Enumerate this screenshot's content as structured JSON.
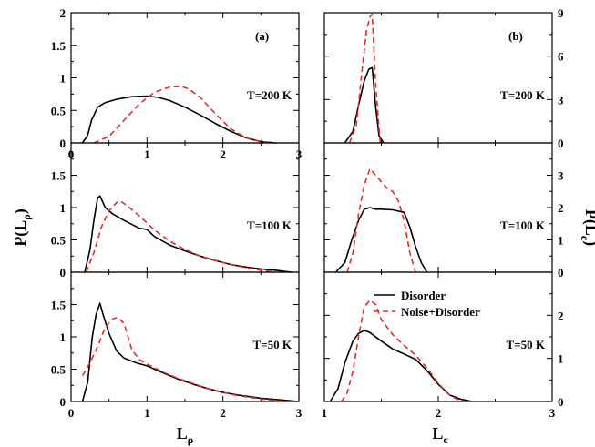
{
  "legend": [
    {
      "label": "Disorder",
      "color": "#000000",
      "dash": "solid"
    },
    {
      "label": "Noise+Disorder",
      "color": "#e8282b",
      "dash": "dashed"
    }
  ],
  "chart_data": [
    {
      "type": "line",
      "panel_tag": "(a)",
      "temp_label": "T=200 K",
      "xlabel": "L",
      "xlabel_sub": "ρ",
      "ylabel": "P(L",
      "ylabel_sub": "ρ",
      "ylabel_close": ")",
      "xlim": [
        0,
        3
      ],
      "ylim": [
        0,
        2
      ],
      "xticks": [
        "0",
        "1",
        "2",
        "3"
      ],
      "yticks": [
        "0",
        "0.5",
        "1",
        "1.5",
        "2"
      ],
      "series": [
        {
          "name": "Disorder",
          "x": [
            0.15,
            0.22,
            0.27,
            0.35,
            0.45,
            0.6,
            0.8,
            1.0,
            1.15,
            1.3,
            1.5,
            1.7,
            1.9,
            2.1,
            2.3,
            2.5,
            2.7
          ],
          "y": [
            0.0,
            0.12,
            0.35,
            0.55,
            0.62,
            0.67,
            0.71,
            0.72,
            0.7,
            0.65,
            0.55,
            0.43,
            0.3,
            0.18,
            0.08,
            0.02,
            0.0
          ]
        },
        {
          "name": "Noise+Disorder",
          "x": [
            0.3,
            0.5,
            0.7,
            0.9,
            1.1,
            1.3,
            1.45,
            1.55,
            1.7,
            1.9,
            2.1,
            2.3,
            2.5,
            2.7
          ],
          "y": [
            0.0,
            0.1,
            0.35,
            0.6,
            0.78,
            0.86,
            0.87,
            0.83,
            0.7,
            0.45,
            0.22,
            0.08,
            0.02,
            0.0
          ]
        }
      ]
    },
    {
      "type": "line",
      "panel_tag": "(b)",
      "temp_label": "T=200 K",
      "xlabel": "",
      "ylabel": "",
      "xlim": [
        1,
        3
      ],
      "ylim": [
        0,
        9
      ],
      "xticks": [],
      "yticks": [
        "0",
        "3",
        "6",
        "9"
      ],
      "series": [
        {
          "name": "Disorder",
          "x": [
            1.18,
            1.25,
            1.3,
            1.35,
            1.39,
            1.42,
            1.45,
            1.48,
            1.52
          ],
          "y": [
            0.0,
            0.8,
            2.6,
            4.3,
            5.1,
            5.2,
            2.5,
            0.5,
            0.0
          ]
        },
        {
          "name": "Noise+Disorder",
          "x": [
            1.22,
            1.28,
            1.33,
            1.37,
            1.4,
            1.42,
            1.45,
            1.49
          ],
          "y": [
            0.0,
            1.2,
            5.0,
            7.8,
            8.7,
            8.9,
            4.0,
            0.0
          ]
        }
      ]
    },
    {
      "type": "line",
      "panel_tag": "",
      "temp_label": "T=100 K",
      "xlabel": "",
      "ylabel": "",
      "xlim": [
        0,
        3
      ],
      "ylim": [
        0,
        2
      ],
      "xticks": [],
      "yticks": [
        "0",
        "0.5",
        "1",
        "1.5"
      ],
      "series": [
        {
          "name": "Disorder",
          "x": [
            0.18,
            0.25,
            0.3,
            0.35,
            0.38,
            0.45,
            0.55,
            0.7,
            0.9,
            1.0,
            1.1,
            1.3,
            1.5,
            1.7,
            1.9,
            2.1,
            2.3,
            2.5,
            2.7,
            2.9
          ],
          "y": [
            0.0,
            0.35,
            0.8,
            1.15,
            1.18,
            1.0,
            0.9,
            0.8,
            0.68,
            0.66,
            0.55,
            0.42,
            0.33,
            0.25,
            0.18,
            0.12,
            0.08,
            0.05,
            0.03,
            0.0
          ]
        },
        {
          "name": "Noise+Disorder",
          "x": [
            0.2,
            0.3,
            0.4,
            0.5,
            0.6,
            0.65,
            0.75,
            0.9,
            1.1,
            1.3,
            1.5,
            1.7,
            1.9,
            2.1,
            2.3,
            2.5,
            2.7
          ],
          "y": [
            0.0,
            0.3,
            0.7,
            0.95,
            1.08,
            1.1,
            1.02,
            0.87,
            0.65,
            0.48,
            0.35,
            0.25,
            0.18,
            0.12,
            0.07,
            0.03,
            0.0
          ]
        }
      ]
    },
    {
      "type": "line",
      "panel_tag": "",
      "temp_label": "T=100 K",
      "xlabel": "",
      "ylabel": "P(L",
      "ylabel_sub": "c",
      "ylabel_close": ")",
      "xlim": [
        1,
        3
      ],
      "ylim": [
        0,
        4
      ],
      "xticks": [],
      "yticks": [
        "0",
        "1",
        "2",
        "3"
      ],
      "series": [
        {
          "name": "Disorder",
          "x": [
            1.1,
            1.18,
            1.24,
            1.3,
            1.35,
            1.4,
            1.45,
            1.5,
            1.6,
            1.7,
            1.75,
            1.8,
            1.85,
            1.9
          ],
          "y": [
            0.0,
            0.3,
            1.0,
            1.6,
            1.95,
            2.0,
            1.95,
            1.95,
            1.93,
            1.85,
            1.4,
            0.8,
            0.3,
            0.0
          ]
        },
        {
          "name": "Noise+Disorder",
          "x": [
            1.2,
            1.25,
            1.3,
            1.35,
            1.4,
            1.45,
            1.5,
            1.55,
            1.6,
            1.65,
            1.7,
            1.75,
            1.8
          ],
          "y": [
            0.0,
            0.6,
            1.8,
            2.7,
            3.2,
            3.0,
            2.8,
            2.6,
            2.5,
            2.2,
            1.6,
            0.6,
            0.0
          ]
        }
      ]
    },
    {
      "type": "line",
      "panel_tag": "",
      "temp_label": "T=50 K",
      "xlabel": "L",
      "xlabel_sub": "ρ",
      "ylabel": "",
      "xlim": [
        0,
        3
      ],
      "ylim": [
        0,
        2
      ],
      "xticks": [
        "0",
        "1",
        "2",
        "3"
      ],
      "yticks": [
        "0",
        "0.5",
        "1",
        "1.5"
      ],
      "series": [
        {
          "name": "Disorder",
          "x": [
            0.15,
            0.22,
            0.28,
            0.33,
            0.38,
            0.42,
            0.5,
            0.6,
            0.7,
            0.85,
            1.0,
            1.2,
            1.4,
            1.6,
            1.8,
            2.0,
            2.2,
            2.5,
            2.8,
            3.0
          ],
          "y": [
            0.0,
            0.3,
            1.0,
            1.35,
            1.52,
            1.35,
            1.05,
            0.78,
            0.67,
            0.6,
            0.55,
            0.45,
            0.35,
            0.27,
            0.2,
            0.14,
            0.1,
            0.05,
            0.02,
            0.0
          ]
        },
        {
          "name": "Noise+Disorder",
          "x": [
            0.15,
            0.25,
            0.35,
            0.45,
            0.55,
            0.62,
            0.7,
            0.8,
            0.9,
            1.0,
            1.2,
            1.4,
            1.6,
            1.8,
            2.0,
            2.2,
            2.5,
            2.8
          ],
          "y": [
            0.4,
            0.6,
            0.85,
            1.15,
            1.28,
            1.3,
            1.2,
            0.8,
            0.65,
            0.58,
            0.46,
            0.36,
            0.28,
            0.2,
            0.14,
            0.09,
            0.04,
            0.0
          ]
        }
      ]
    },
    {
      "type": "line",
      "panel_tag": "",
      "temp_label": "T=50 K",
      "xlabel": "L",
      "xlabel_sub": "c",
      "ylabel": "",
      "xlim": [
        1,
        3
      ],
      "ylim": [
        0,
        3
      ],
      "xticks": [
        "1",
        "2",
        "3"
      ],
      "yticks": [
        "0",
        "1",
        "2"
      ],
      "series": [
        {
          "name": "Disorder",
          "x": [
            1.05,
            1.12,
            1.18,
            1.25,
            1.3,
            1.35,
            1.4,
            1.5,
            1.6,
            1.7,
            1.8,
            1.9,
            2.0,
            2.1,
            2.2,
            2.3
          ],
          "y": [
            0.0,
            0.3,
            0.9,
            1.4,
            1.58,
            1.65,
            1.6,
            1.4,
            1.22,
            1.1,
            0.98,
            0.72,
            0.4,
            0.15,
            0.05,
            0.0
          ]
        },
        {
          "name": "Noise+Disorder",
          "x": [
            1.15,
            1.2,
            1.25,
            1.3,
            1.35,
            1.4,
            1.45,
            1.5,
            1.6,
            1.7,
            1.8,
            1.9,
            2.0,
            2.1,
            2.2
          ],
          "y": [
            0.0,
            0.2,
            0.7,
            1.5,
            2.2,
            2.35,
            2.25,
            1.9,
            1.55,
            1.3,
            1.08,
            0.78,
            0.42,
            0.15,
            0.0
          ]
        }
      ]
    }
  ]
}
